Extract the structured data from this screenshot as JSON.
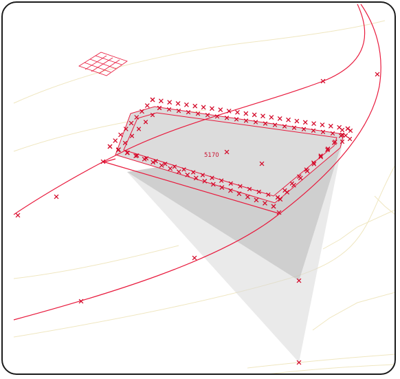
{
  "diagram": {
    "spot_elevation_label": "5170",
    "colors": {
      "redline": "#e8193c",
      "marker": "#d40a2a",
      "contour": "#efe6bf",
      "shade_light": "#d8d8d8",
      "shade_dark": "#b0b0b0",
      "frame": "#1a1a1a"
    }
  }
}
